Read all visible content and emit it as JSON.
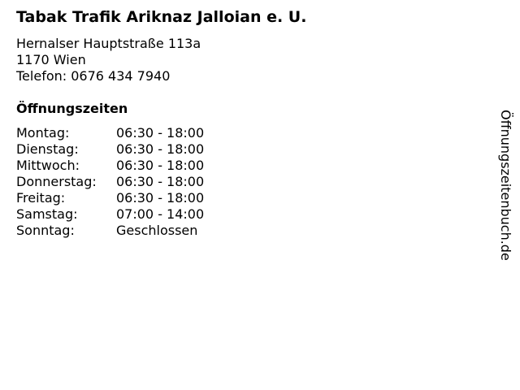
{
  "title": "Tabak Trafik Ariknaz Jalloian e. U.",
  "address": {
    "street": "Hernalser Hauptstraße 113a",
    "city": "1170 Wien",
    "phone": "Telefon: 0676 434 7940"
  },
  "hours_heading": "Öffnungszeiten",
  "hours": [
    {
      "day": "Montag:",
      "time": "06:30 - 18:00"
    },
    {
      "day": "Dienstag:",
      "time": "06:30 - 18:00"
    },
    {
      "day": "Mittwoch:",
      "time": "06:30 - 18:00"
    },
    {
      "day": "Donnerstag:",
      "time": "06:30 - 18:00"
    },
    {
      "day": "Freitag:",
      "time": "06:30 - 18:00"
    },
    {
      "day": "Samstag:",
      "time": "07:00 - 14:00"
    },
    {
      "day": "Sonntag:",
      "time": "Geschlossen"
    }
  ],
  "side_label": "Öffnungszeitenbuch.de"
}
